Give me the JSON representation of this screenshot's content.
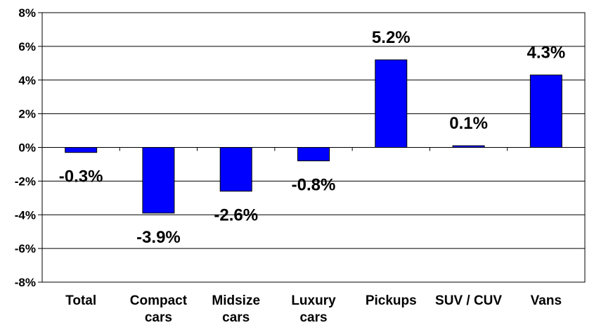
{
  "chart_data": {
    "type": "bar",
    "title": "",
    "xlabel": "",
    "ylabel": "",
    "categories": [
      [
        "Total"
      ],
      [
        "Compact",
        "cars"
      ],
      [
        "Midsize",
        "cars"
      ],
      [
        "Luxury",
        "cars"
      ],
      [
        "Pickups"
      ],
      [
        "SUV / CUV"
      ],
      [
        "Vans"
      ]
    ],
    "values": [
      -0.3,
      -3.9,
      -2.6,
      -0.8,
      5.2,
      0.1,
      4.3
    ],
    "data_labels": [
      "-0.3%",
      "-3.9%",
      "-2.6%",
      "-0.8%",
      "5.2%",
      "0.1%",
      "4.3%"
    ],
    "yticks": [
      "8%",
      "6%",
      "4%",
      "2%",
      "0%",
      "-2%",
      "-4%",
      "-6%",
      "-8%"
    ],
    "ylim": [
      -8,
      8
    ],
    "y_tick_values": [
      8,
      6,
      4,
      2,
      0,
      -2,
      -4,
      -6,
      -8
    ],
    "grid": true,
    "legend": "none",
    "colors": {
      "bar": "#0000ff",
      "bar_edge": "#000000",
      "grid": "#000000"
    }
  }
}
